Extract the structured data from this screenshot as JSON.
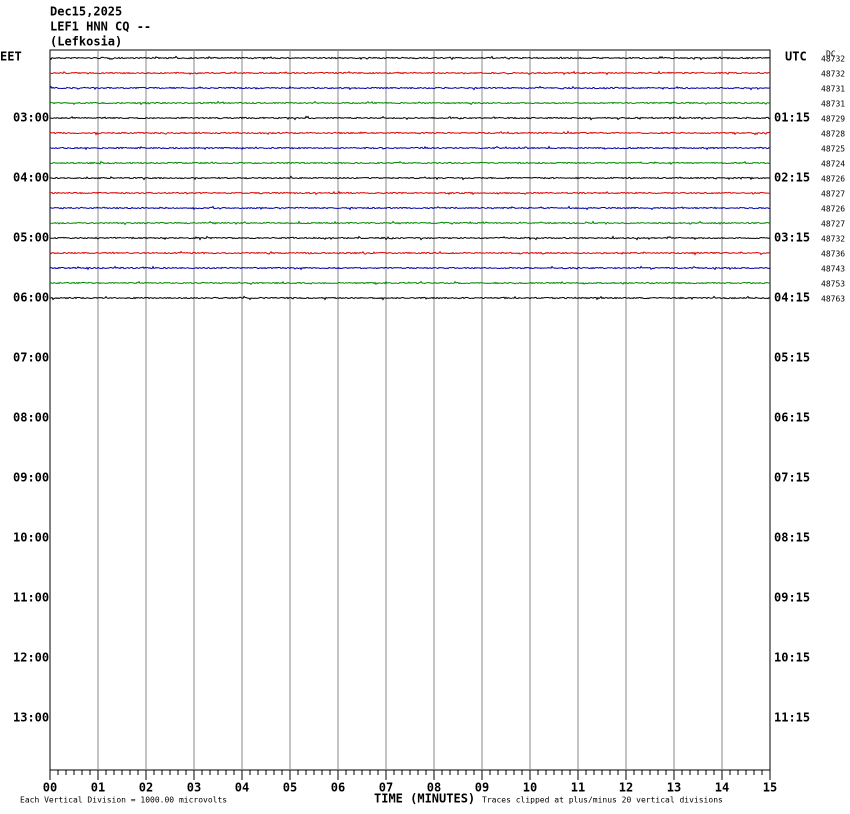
{
  "header": {
    "date": "Dec15,2025",
    "station": "LEF1 HNN CQ --",
    "place": "(Lefkosia)"
  },
  "left_zone": "EET",
  "right_zone": "UTC",
  "dc_label": "DC",
  "left_times": [
    "03:00",
    "04:00",
    "05:00",
    "06:00",
    "07:00",
    "08:00",
    "09:00",
    "10:00",
    "11:00",
    "12:00",
    "13:00"
  ],
  "right_times": [
    "01:15",
    "02:15",
    "03:15",
    "04:15",
    "05:15",
    "06:15",
    "07:15",
    "08:15",
    "09:15",
    "10:15",
    "11:15"
  ],
  "dc_values": [
    "48732",
    "48732",
    "48731",
    "48731",
    "48729",
    "48728",
    "48725",
    "48724",
    "48726",
    "48727",
    "48726",
    "48727",
    "48732",
    "48736",
    "48743",
    "48753",
    "48763"
  ],
  "x_ticks": [
    "00",
    "01",
    "02",
    "03",
    "04",
    "05",
    "06",
    "07",
    "08",
    "09",
    "10",
    "11",
    "12",
    "13",
    "14",
    "15"
  ],
  "footer": {
    "scale": "Each Vertical Division = 1000.00 microvolts",
    "axis": "TIME (MINUTES)",
    "clip": "Traces clipped at plus/minus 20 vertical divisions"
  }
}
